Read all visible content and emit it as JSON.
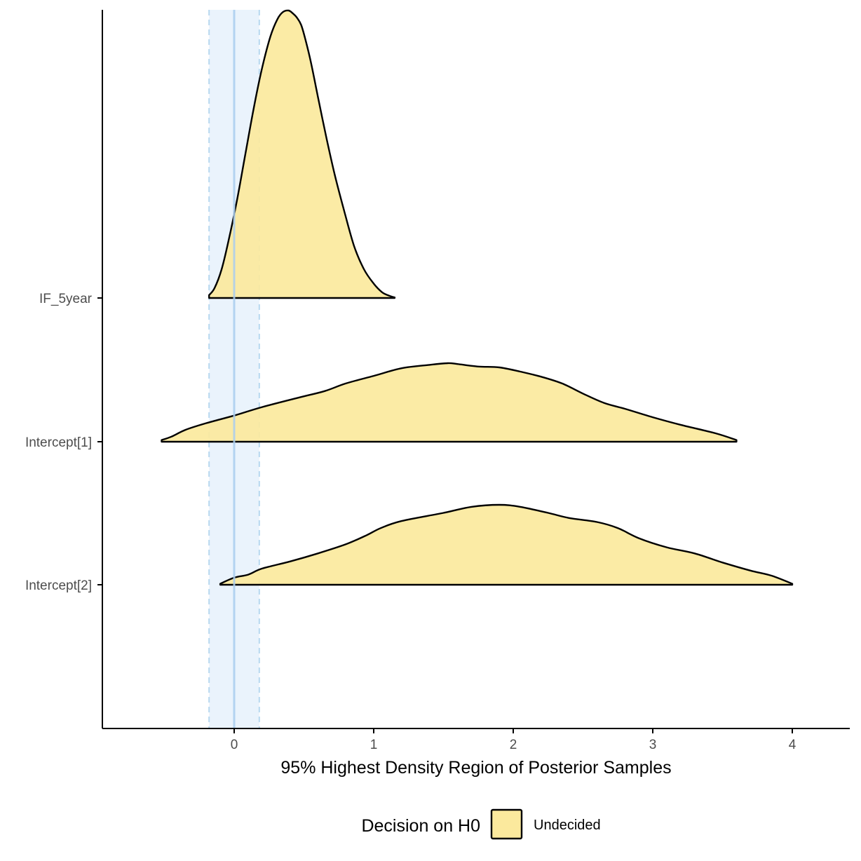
{
  "chart_data": {
    "type": "area",
    "xlabel": "95% Highest Density Region of Posterior Samples",
    "ylabel": "",
    "x_ticks": [
      0,
      1,
      2,
      3,
      4
    ],
    "xlim": [
      -0.95,
      4.42
    ],
    "rope": {
      "low": -0.18,
      "high": 0.18,
      "center": 0
    },
    "categories": [
      "IF_5year",
      "Intercept[1]",
      "Intercept[2]"
    ],
    "series": [
      {
        "name": "IF_5year",
        "x": [
          -0.18,
          -0.14,
          -0.09,
          -0.04,
          0.02,
          0.08,
          0.14,
          0.2,
          0.26,
          0.31,
          0.35,
          0.39,
          0.42,
          0.45,
          0.48,
          0.51,
          0.55,
          0.6,
          0.66,
          0.72,
          0.79,
          0.86,
          0.93,
          1.0,
          1.06,
          1.11,
          1.15
        ],
        "density": [
          0.01,
          0.035,
          0.1,
          0.2,
          0.34,
          0.5,
          0.66,
          0.8,
          0.91,
          0.97,
          0.995,
          1.0,
          0.99,
          0.975,
          0.95,
          0.9,
          0.82,
          0.7,
          0.56,
          0.43,
          0.3,
          0.18,
          0.1,
          0.05,
          0.02,
          0.008,
          0.002
        ]
      },
      {
        "name": "Intercept[1]",
        "x": [
          -0.52,
          -0.45,
          -0.35,
          -0.2,
          0.0,
          0.2,
          0.48,
          0.65,
          0.8,
          1.0,
          1.2,
          1.4,
          1.53,
          1.6,
          1.75,
          1.9,
          2.05,
          2.2,
          2.35,
          2.5,
          2.65,
          2.8,
          3.0,
          3.2,
          3.45,
          3.6
        ],
        "density": [
          0.02,
          0.06,
          0.14,
          0.22,
          0.31,
          0.41,
          0.53,
          0.6,
          0.69,
          0.78,
          0.87,
          0.91,
          0.93,
          0.92,
          0.89,
          0.88,
          0.83,
          0.77,
          0.69,
          0.57,
          0.46,
          0.39,
          0.29,
          0.2,
          0.1,
          0.02
        ]
      },
      {
        "name": "Intercept[2]",
        "x": [
          -0.1,
          0.0,
          0.1,
          0.2,
          0.4,
          0.6,
          0.8,
          0.95,
          1.05,
          1.2,
          1.5,
          1.7,
          1.9,
          2.05,
          2.25,
          2.4,
          2.6,
          2.75,
          2.9,
          3.1,
          3.3,
          3.5,
          3.7,
          3.85,
          4.0
        ],
        "density": [
          0.01,
          0.07,
          0.1,
          0.16,
          0.23,
          0.31,
          0.4,
          0.49,
          0.56,
          0.63,
          0.71,
          0.77,
          0.79,
          0.77,
          0.71,
          0.66,
          0.62,
          0.56,
          0.46,
          0.37,
          0.31,
          0.22,
          0.14,
          0.09,
          0.01
        ]
      }
    ],
    "legend": {
      "title": "Decision on H0",
      "placement": "bottom",
      "entries": [
        "Undecided"
      ]
    },
    "grid": false
  },
  "colors": {
    "fill": "#fbe99d",
    "outline": "#000000",
    "rope_fill": "#eaf3fc",
    "rope_line": "#b8d8f0",
    "zero_line": "#a9cdef",
    "axis": "#000000",
    "tick_text": "#4d4d4d"
  }
}
